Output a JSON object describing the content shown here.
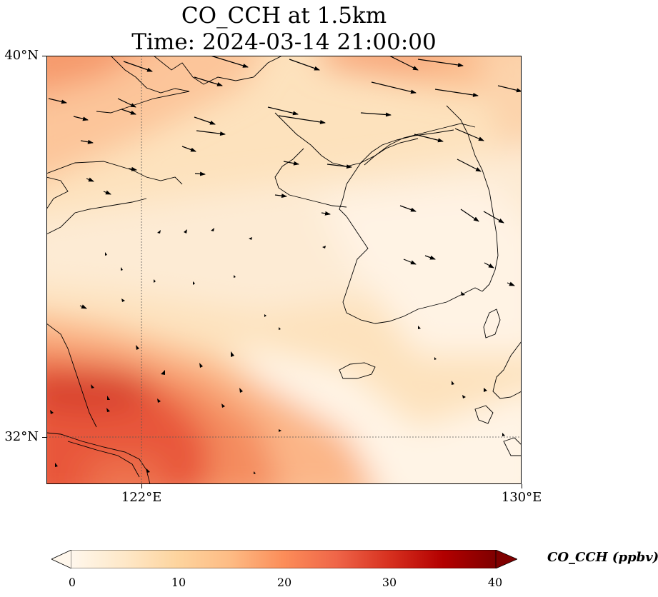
{
  "title": {
    "line1": "CO_CCH at 1.5km",
    "line2": "Time: 2024-03-14 21:00:00"
  },
  "axes": {
    "lat_labels": [
      "40°N",
      "32°N"
    ],
    "lon_labels": [
      "122°E",
      "130°E"
    ],
    "lon_range": [
      120,
      130
    ],
    "lat_range": [
      31,
      40
    ],
    "gridlines": "dotted at 122°E and 32°N"
  },
  "colorbar": {
    "label": "CO_CCH (ppbv)",
    "ticks": [
      "0",
      "10",
      "20",
      "30",
      "40"
    ],
    "range": [
      0,
      40
    ],
    "colormap": "OrRd",
    "colors": [
      "#fff7ec",
      "#fee8c8",
      "#fdd49e",
      "#fdbb84",
      "#fc8d59",
      "#ef6548",
      "#d7301f",
      "#b30000",
      "#7f0000"
    ],
    "extend": "both"
  },
  "wind_vectors": "black arrows, strong westerlies in north, weak in south"
}
